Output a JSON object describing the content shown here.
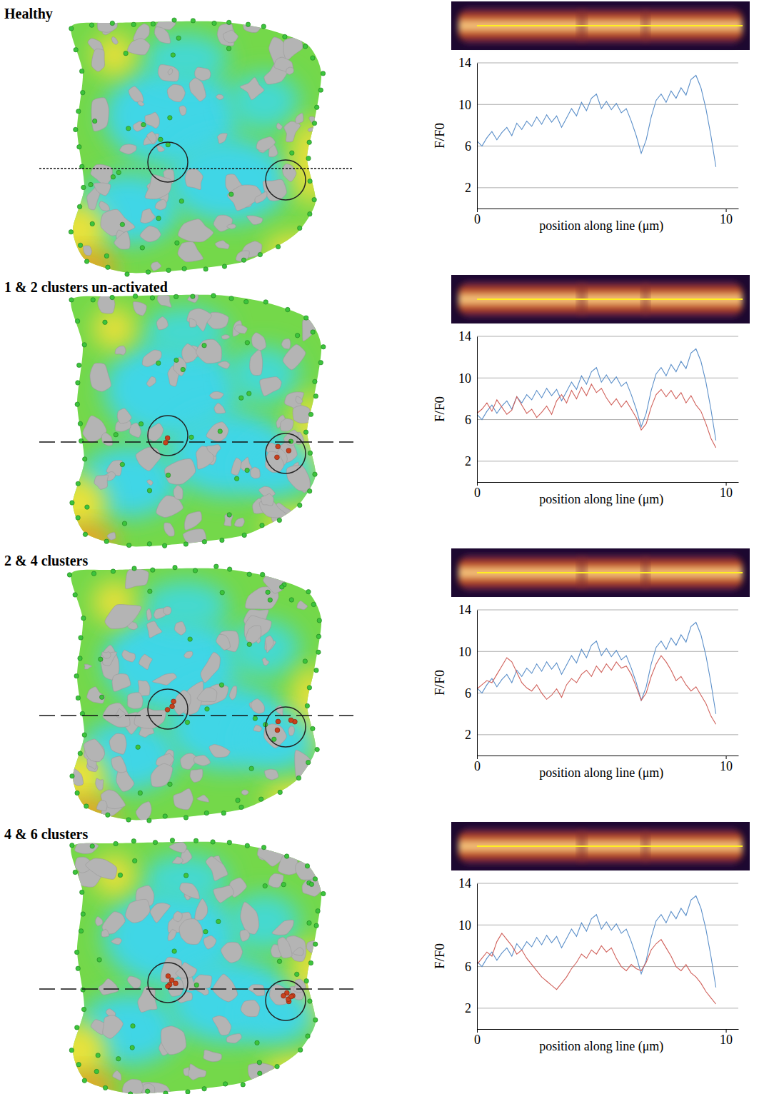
{
  "chart_data": [
    {
      "type": "line",
      "title": "Healthy",
      "xlabel": "position along line (μm)",
      "ylabel": "F/F0",
      "x": [
        0,
        0.2,
        0.4,
        0.6,
        0.8,
        1.0,
        1.2,
        1.4,
        1.6,
        1.8,
        2.0,
        2.2,
        2.4,
        2.6,
        2.8,
        3.0,
        3.2,
        3.4,
        3.6,
        3.8,
        4.0,
        4.2,
        4.4,
        4.6,
        4.8,
        5.0,
        5.2,
        5.4,
        5.6,
        5.8,
        6.0,
        6.2,
        6.4,
        6.6,
        6.8,
        7.0,
        7.2,
        7.4,
        7.6,
        7.8,
        8.0,
        8.2,
        8.4,
        8.6,
        8.8,
        9.0,
        9.2,
        9.4,
        9.6
      ],
      "series": [
        {
          "color": "#5b8fc9",
          "values": [
            6.5,
            6.0,
            6.8,
            7.4,
            6.6,
            7.3,
            7.8,
            7.0,
            8.2,
            7.6,
            8.4,
            7.9,
            8.8,
            8.1,
            9.0,
            8.3,
            8.9,
            7.8,
            8.7,
            9.6,
            8.9,
            10.2,
            9.4,
            10.6,
            11.0,
            9.6,
            10.3,
            9.5,
            10.1,
            9.2,
            9.6,
            8.4,
            7.0,
            5.3,
            6.6,
            8.8,
            10.4,
            11.0,
            10.2,
            11.3,
            10.6,
            11.6,
            10.9,
            12.4,
            12.8,
            11.6,
            9.6,
            7.0,
            4.0
          ]
        }
      ],
      "xlim": [
        0,
        10.5
      ],
      "xticks": [
        0,
        10
      ],
      "ylim": [
        0,
        14
      ],
      "yticks": [
        2,
        6,
        10,
        14
      ],
      "grid": true
    },
    {
      "type": "line",
      "title": "1 & 2 clusters un-activated",
      "xlabel": "position along line (μm)",
      "ylabel": "F/F0",
      "x": [
        0,
        0.2,
        0.4,
        0.6,
        0.8,
        1.0,
        1.2,
        1.4,
        1.6,
        1.8,
        2.0,
        2.2,
        2.4,
        2.6,
        2.8,
        3.0,
        3.2,
        3.4,
        3.6,
        3.8,
        4.0,
        4.2,
        4.4,
        4.6,
        4.8,
        5.0,
        5.2,
        5.4,
        5.6,
        5.8,
        6.0,
        6.2,
        6.4,
        6.6,
        6.8,
        7.0,
        7.2,
        7.4,
        7.6,
        7.8,
        8.0,
        8.2,
        8.4,
        8.6,
        8.8,
        9.0,
        9.2,
        9.4,
        9.6
      ],
      "series": [
        {
          "color": "#5b8fc9",
          "values": [
            6.5,
            6.0,
            6.8,
            7.4,
            6.6,
            7.3,
            7.8,
            7.0,
            8.2,
            7.6,
            8.4,
            7.9,
            8.8,
            8.1,
            9.0,
            8.3,
            8.9,
            7.8,
            8.7,
            9.6,
            8.9,
            10.2,
            9.4,
            10.6,
            11.0,
            9.6,
            10.3,
            9.5,
            10.1,
            9.2,
            9.6,
            8.4,
            7.0,
            5.3,
            6.6,
            8.8,
            10.4,
            11.0,
            10.2,
            11.3,
            10.6,
            11.6,
            10.9,
            12.4,
            12.8,
            11.6,
            9.6,
            7.0,
            4.0
          ]
        },
        {
          "color": "#d0605a",
          "values": [
            6.6,
            7.0,
            7.6,
            6.8,
            7.9,
            7.2,
            6.5,
            6.9,
            8.2,
            7.4,
            6.6,
            7.0,
            6.2,
            6.7,
            7.3,
            6.5,
            7.8,
            8.4,
            7.6,
            8.8,
            8.0,
            9.1,
            8.3,
            9.4,
            8.6,
            9.0,
            8.1,
            7.4,
            8.0,
            7.2,
            7.8,
            7.0,
            6.2,
            5.0,
            5.6,
            7.2,
            8.4,
            8.9,
            8.2,
            8.8,
            8.0,
            8.6,
            7.6,
            8.3,
            7.4,
            6.8,
            5.6,
            4.2,
            3.3
          ]
        }
      ],
      "xlim": [
        0,
        10.5
      ],
      "xticks": [
        0,
        10
      ],
      "ylim": [
        0,
        14
      ],
      "yticks": [
        2,
        6,
        10,
        14
      ],
      "grid": true
    },
    {
      "type": "line",
      "title": "2 & 4 clusters",
      "xlabel": "position along line (μm)",
      "ylabel": "F/F0",
      "x": [
        0,
        0.2,
        0.4,
        0.6,
        0.8,
        1.0,
        1.2,
        1.4,
        1.6,
        1.8,
        2.0,
        2.2,
        2.4,
        2.6,
        2.8,
        3.0,
        3.2,
        3.4,
        3.6,
        3.8,
        4.0,
        4.2,
        4.4,
        4.6,
        4.8,
        5.0,
        5.2,
        5.4,
        5.6,
        5.8,
        6.0,
        6.2,
        6.4,
        6.6,
        6.8,
        7.0,
        7.2,
        7.4,
        7.6,
        7.8,
        8.0,
        8.2,
        8.4,
        8.6,
        8.8,
        9.0,
        9.2,
        9.4,
        9.6
      ],
      "series": [
        {
          "color": "#5b8fc9",
          "values": [
            6.5,
            6.0,
            6.8,
            7.4,
            6.6,
            7.3,
            7.8,
            7.0,
            8.2,
            7.6,
            8.4,
            7.9,
            8.8,
            8.1,
            9.0,
            8.3,
            8.9,
            7.8,
            8.7,
            9.6,
            8.9,
            10.2,
            9.4,
            10.6,
            11.0,
            9.6,
            10.3,
            9.5,
            10.1,
            9.2,
            9.6,
            8.4,
            7.0,
            5.3,
            6.6,
            8.8,
            10.4,
            11.0,
            10.2,
            11.3,
            10.6,
            11.6,
            10.9,
            12.4,
            12.8,
            11.6,
            9.6,
            7.0,
            4.0
          ]
        },
        {
          "color": "#d0605a",
          "values": [
            6.4,
            6.8,
            7.2,
            7.0,
            7.8,
            8.6,
            9.4,
            9.0,
            8.0,
            7.0,
            6.5,
            6.2,
            6.8,
            6.0,
            5.4,
            5.8,
            6.4,
            5.6,
            6.8,
            7.4,
            7.0,
            7.8,
            8.2,
            7.6,
            8.6,
            8.0,
            8.8,
            8.2,
            9.0,
            8.4,
            8.6,
            7.8,
            6.6,
            5.3,
            6.0,
            7.6,
            8.8,
            9.6,
            9.0,
            8.2,
            7.2,
            7.6,
            6.8,
            6.2,
            6.6,
            5.8,
            5.0,
            3.8,
            3.0
          ]
        }
      ],
      "xlim": [
        0,
        10.5
      ],
      "xticks": [
        0,
        10
      ],
      "ylim": [
        0,
        14
      ],
      "yticks": [
        2,
        6,
        10,
        14
      ],
      "grid": true
    },
    {
      "type": "line",
      "title": "4 & 6 clusters",
      "xlabel": "position along line (μm)",
      "ylabel": "F/F0",
      "x": [
        0,
        0.2,
        0.4,
        0.6,
        0.8,
        1.0,
        1.2,
        1.4,
        1.6,
        1.8,
        2.0,
        2.2,
        2.4,
        2.6,
        2.8,
        3.0,
        3.2,
        3.4,
        3.6,
        3.8,
        4.0,
        4.2,
        4.4,
        4.6,
        4.8,
        5.0,
        5.2,
        5.4,
        5.6,
        5.8,
        6.0,
        6.2,
        6.4,
        6.6,
        6.8,
        7.0,
        7.2,
        7.4,
        7.6,
        7.8,
        8.0,
        8.2,
        8.4,
        8.6,
        8.8,
        9.0,
        9.2,
        9.4,
        9.6
      ],
      "series": [
        {
          "color": "#5b8fc9",
          "values": [
            6.5,
            6.0,
            6.8,
            7.4,
            6.6,
            7.3,
            7.8,
            7.0,
            8.2,
            7.6,
            8.4,
            7.9,
            8.8,
            8.1,
            9.0,
            8.3,
            8.9,
            7.8,
            8.7,
            9.6,
            8.9,
            10.2,
            9.4,
            10.6,
            11.0,
            9.6,
            10.3,
            9.5,
            10.1,
            9.2,
            9.6,
            8.4,
            7.0,
            5.3,
            6.6,
            8.8,
            10.4,
            11.0,
            10.2,
            11.3,
            10.6,
            11.6,
            10.9,
            12.4,
            12.8,
            11.6,
            9.6,
            7.0,
            4.0
          ]
        },
        {
          "color": "#d0605a",
          "values": [
            6.2,
            6.8,
            7.4,
            7.0,
            8.4,
            9.2,
            8.6,
            8.0,
            7.2,
            7.6,
            6.8,
            6.2,
            5.6,
            5.0,
            4.6,
            4.2,
            3.8,
            4.4,
            5.0,
            5.8,
            6.4,
            7.2,
            6.8,
            7.6,
            7.2,
            8.0,
            7.4,
            7.8,
            6.8,
            6.0,
            5.6,
            6.2,
            5.8,
            5.6,
            6.4,
            7.6,
            8.2,
            8.6,
            7.8,
            7.0,
            6.0,
            5.6,
            6.2,
            5.4,
            5.0,
            4.4,
            3.6,
            3.0,
            2.4
          ]
        }
      ],
      "xlim": [
        0,
        10.5
      ],
      "xticks": [
        0,
        10
      ],
      "ylim": [
        0,
        14
      ],
      "yticks": [
        2,
        6,
        10,
        14
      ],
      "grid": true
    }
  ]
}
